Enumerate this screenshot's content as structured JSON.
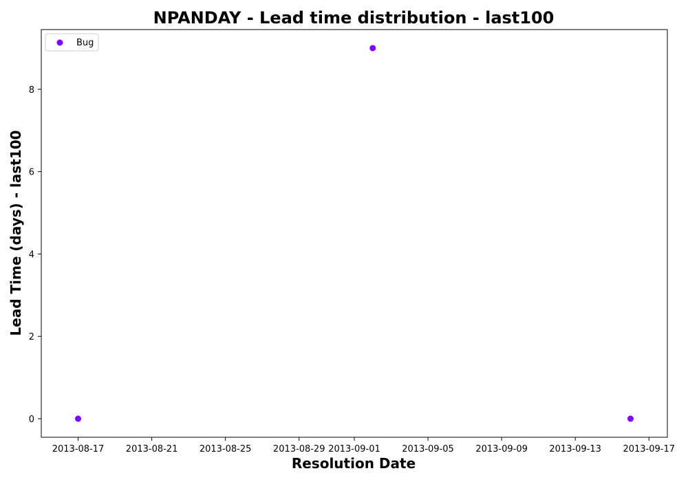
{
  "chart_data": {
    "type": "scatter",
    "title": "NPANDAY - Lead time distribution - last100",
    "xlabel": "Resolution Date",
    "ylabel": "Lead Time (days) - last100",
    "x_type": "date",
    "xlim": [
      "2013-08-15",
      "2013-09-18"
    ],
    "ylim": [
      -0.45,
      9.45
    ],
    "x_ticks": [
      "2013-08-17",
      "2013-08-21",
      "2013-08-25",
      "2013-08-29",
      "2013-09-01",
      "2013-09-05",
      "2013-09-09",
      "2013-09-13",
      "2013-09-17"
    ],
    "y_ticks": [
      0,
      2,
      4,
      6,
      8
    ],
    "grid": false,
    "legend_position": "upper-left",
    "series": [
      {
        "name": "Bug",
        "color": "#8000ff",
        "points": [
          {
            "x": "2013-08-17",
            "y": 0
          },
          {
            "x": "2013-09-02",
            "y": 9
          },
          {
            "x": "2013-09-16",
            "y": 0
          }
        ]
      }
    ]
  }
}
